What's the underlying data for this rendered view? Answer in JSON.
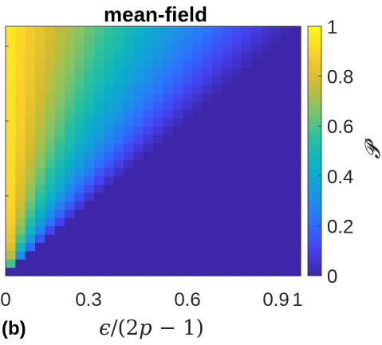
{
  "chart_data": {
    "type": "heatmap",
    "title": "mean-field",
    "panel_label": "(b)",
    "xlabel": {
      "prefix": "ϵ",
      "middle": "/(2",
      "var": "p",
      "suffix": " − 1)"
    },
    "xlim": [
      0,
      1
    ],
    "xticks": [
      {
        "value": 0,
        "label": "0"
      },
      {
        "value": 0.3,
        "label": "0.3"
      },
      {
        "value": 0.6,
        "label": "0.6"
      },
      {
        "value": 0.9,
        "label": "0.9"
      },
      {
        "value": 1,
        "label": "1"
      }
    ],
    "ylim": [
      0,
      1
    ],
    "yticks_unlabeled": [
      0.32,
      0.62,
      0.92
    ],
    "grid": {
      "nx": 30,
      "ny": 30
    },
    "description_rule": "P = 0 when x > y; otherwise P decreases from 1 at x = 0 toward 0 at the diagonal x = y",
    "colorbar": {
      "label": "𝓟",
      "range": [
        0,
        1
      ],
      "ticks": [
        {
          "value": 0,
          "label": "0"
        },
        {
          "value": 0.2,
          "label": "0.2"
        },
        {
          "value": 0.4,
          "label": "0.4"
        },
        {
          "value": 0.6,
          "label": "0.6"
        },
        {
          "value": 0.8,
          "label": "0.8"
        },
        {
          "value": 1,
          "label": "1"
        }
      ]
    },
    "colormap": "parula",
    "colormap_stops": [
      "#3e26a8",
      "#4544f4",
      "#2c74fc",
      "#1997e2",
      "#0bb1c5",
      "#2ac09f",
      "#83c466",
      "#d4bb30",
      "#fbcf2c",
      "#f9fb15"
    ]
  }
}
